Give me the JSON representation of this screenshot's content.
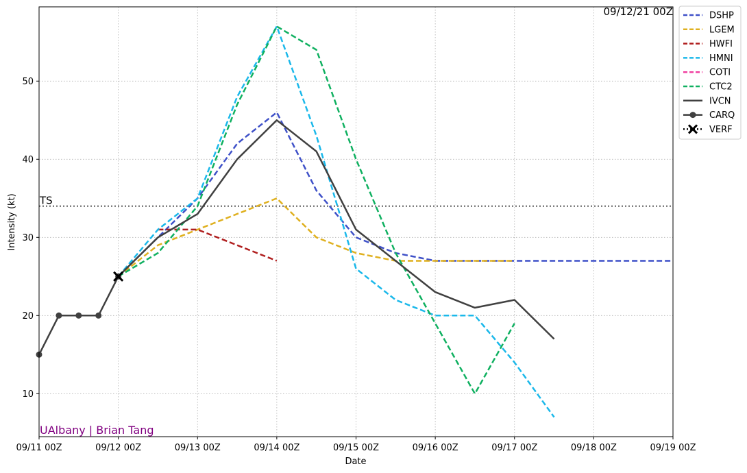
{
  "chart_data": {
    "type": "line",
    "timestamp": "09/12/21 00Z",
    "credit": "UAlbany | Brian Tang",
    "xlabel": "Date",
    "ylabel": "Intensity (kt)",
    "x_tick_labels": [
      "09/11 00Z",
      "09/12 00Z",
      "09/13 00Z",
      "09/14 00Z",
      "09/15 00Z",
      "09/16 00Z",
      "09/17 00Z",
      "09/18 00Z",
      "09/19 00Z"
    ],
    "y_ticks": [
      10,
      20,
      30,
      40,
      50
    ],
    "xlim_days": [
      0,
      8
    ],
    "ylim": [
      4.5,
      59.5
    ],
    "grid": true,
    "legend_position": "outside-right-top",
    "threshold": {
      "label": "TS",
      "value": 34,
      "color": "#808080"
    },
    "series": [
      {
        "name": "DSHP",
        "color": "#3f51c8",
        "style": "dashed",
        "marker": "none",
        "x": [
          1,
          1.5,
          2,
          2.5,
          3,
          3.5,
          4,
          4.5,
          5,
          5.5,
          6,
          6.5,
          7,
          7.5,
          8
        ],
        "y": [
          25,
          30,
          35,
          42,
          46,
          36,
          30,
          28,
          27,
          27,
          27,
          27,
          27,
          27,
          27
        ]
      },
      {
        "name": "LGEM",
        "color": "#dfb01f",
        "style": "dashed",
        "marker": "none",
        "x": [
          1,
          1.5,
          2,
          2.5,
          3,
          3.5,
          4,
          4.5,
          5,
          5.5,
          6
        ],
        "y": [
          25,
          29,
          31,
          33,
          35,
          30,
          28,
          27,
          27,
          27,
          27
        ]
      },
      {
        "name": "HWFI",
        "color": "#b01f1f",
        "style": "dashed",
        "marker": "none",
        "x": [
          1.5,
          2,
          2.5,
          3
        ],
        "y": [
          31,
          31,
          29,
          27
        ]
      },
      {
        "name": "HMNI",
        "color": "#1ab8ea",
        "style": "dashed",
        "marker": "none",
        "x": [
          1,
          1.5,
          2,
          2.5,
          3,
          3.5,
          4,
          4.5,
          5,
          5.5,
          6,
          6.5
        ],
        "y": [
          25,
          31,
          35,
          48,
          57,
          43,
          26,
          22,
          20,
          20,
          14,
          7
        ]
      },
      {
        "name": "COTI",
        "color": "#f040a0",
        "style": "dashed",
        "marker": "none",
        "x": [],
        "y": []
      },
      {
        "name": "CTC2",
        "color": "#0fb060",
        "style": "dashed",
        "marker": "none",
        "x": [
          1,
          1.5,
          2,
          2.5,
          3,
          3.5,
          4,
          4.5,
          5,
          5.5,
          6
        ],
        "y": [
          25,
          28,
          34,
          47,
          57,
          54,
          40,
          28,
          19,
          10,
          19
        ]
      },
      {
        "name": "IVCN",
        "color": "#404040",
        "style": "solid",
        "marker": "none",
        "x": [
          1,
          1.5,
          2,
          2.5,
          3,
          3.5,
          4,
          4.5,
          5,
          5.5,
          6,
          6.5
        ],
        "y": [
          25,
          30,
          33,
          40,
          45,
          41,
          31,
          27,
          23,
          21,
          22,
          17
        ]
      },
      {
        "name": "CARQ",
        "color": "#404040",
        "style": "solid",
        "marker": "circle",
        "x": [
          0,
          0.25,
          0.5,
          0.75,
          1
        ],
        "y": [
          15,
          20,
          20,
          20,
          25
        ]
      },
      {
        "name": "VERF",
        "color": "#000000",
        "style": "dotted",
        "marker": "x",
        "x": [
          1
        ],
        "y": [
          25
        ]
      }
    ]
  }
}
